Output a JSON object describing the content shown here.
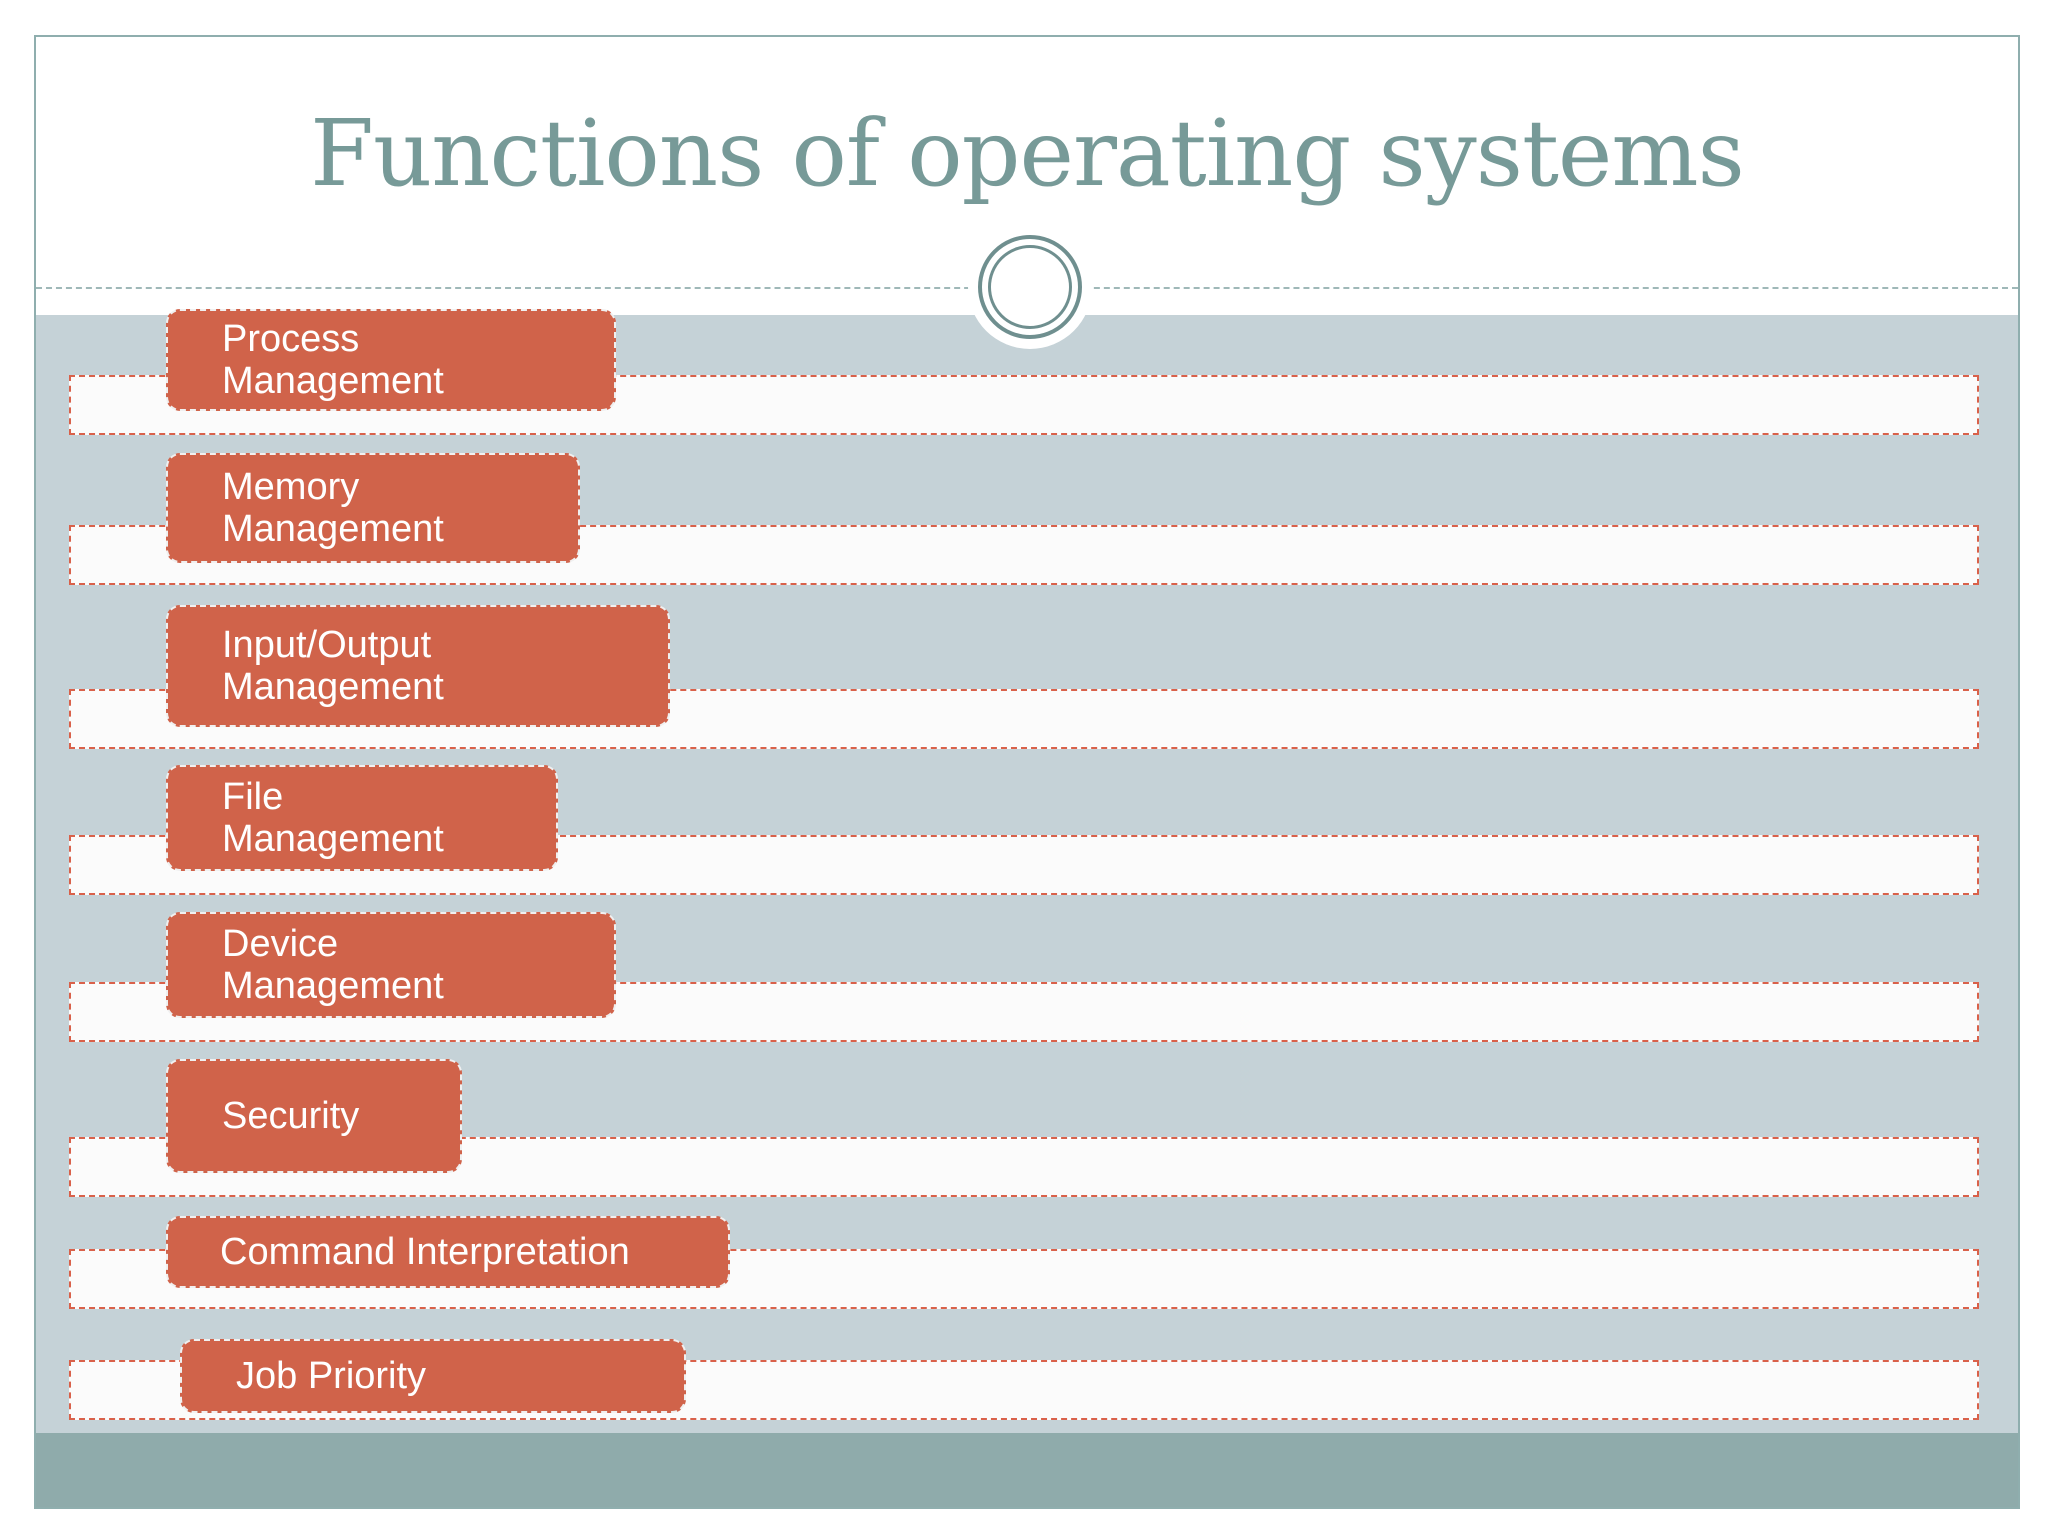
{
  "slide": {
    "title": "Functions of operating systems",
    "colors": {
      "title": "#779a98",
      "pill": "#d0634a",
      "strip_border": "#d9614a",
      "content_band": "#c5d2d7",
      "footer_band": "#8fabab"
    }
  },
  "items": [
    {
      "line1": "Process",
      "line2": "Management"
    },
    {
      "line1": "Memory",
      "line2": "Management"
    },
    {
      "line1": "Input/Output",
      "line2": "Management"
    },
    {
      "line1": "File",
      "line2": "Management"
    },
    {
      "line1": "Device",
      "line2": "Management"
    },
    {
      "line1": "Security",
      "line2": ""
    },
    {
      "line1": "Command Interpretation",
      "line2": ""
    },
    {
      "line1": "Job Priority",
      "line2": ""
    }
  ]
}
